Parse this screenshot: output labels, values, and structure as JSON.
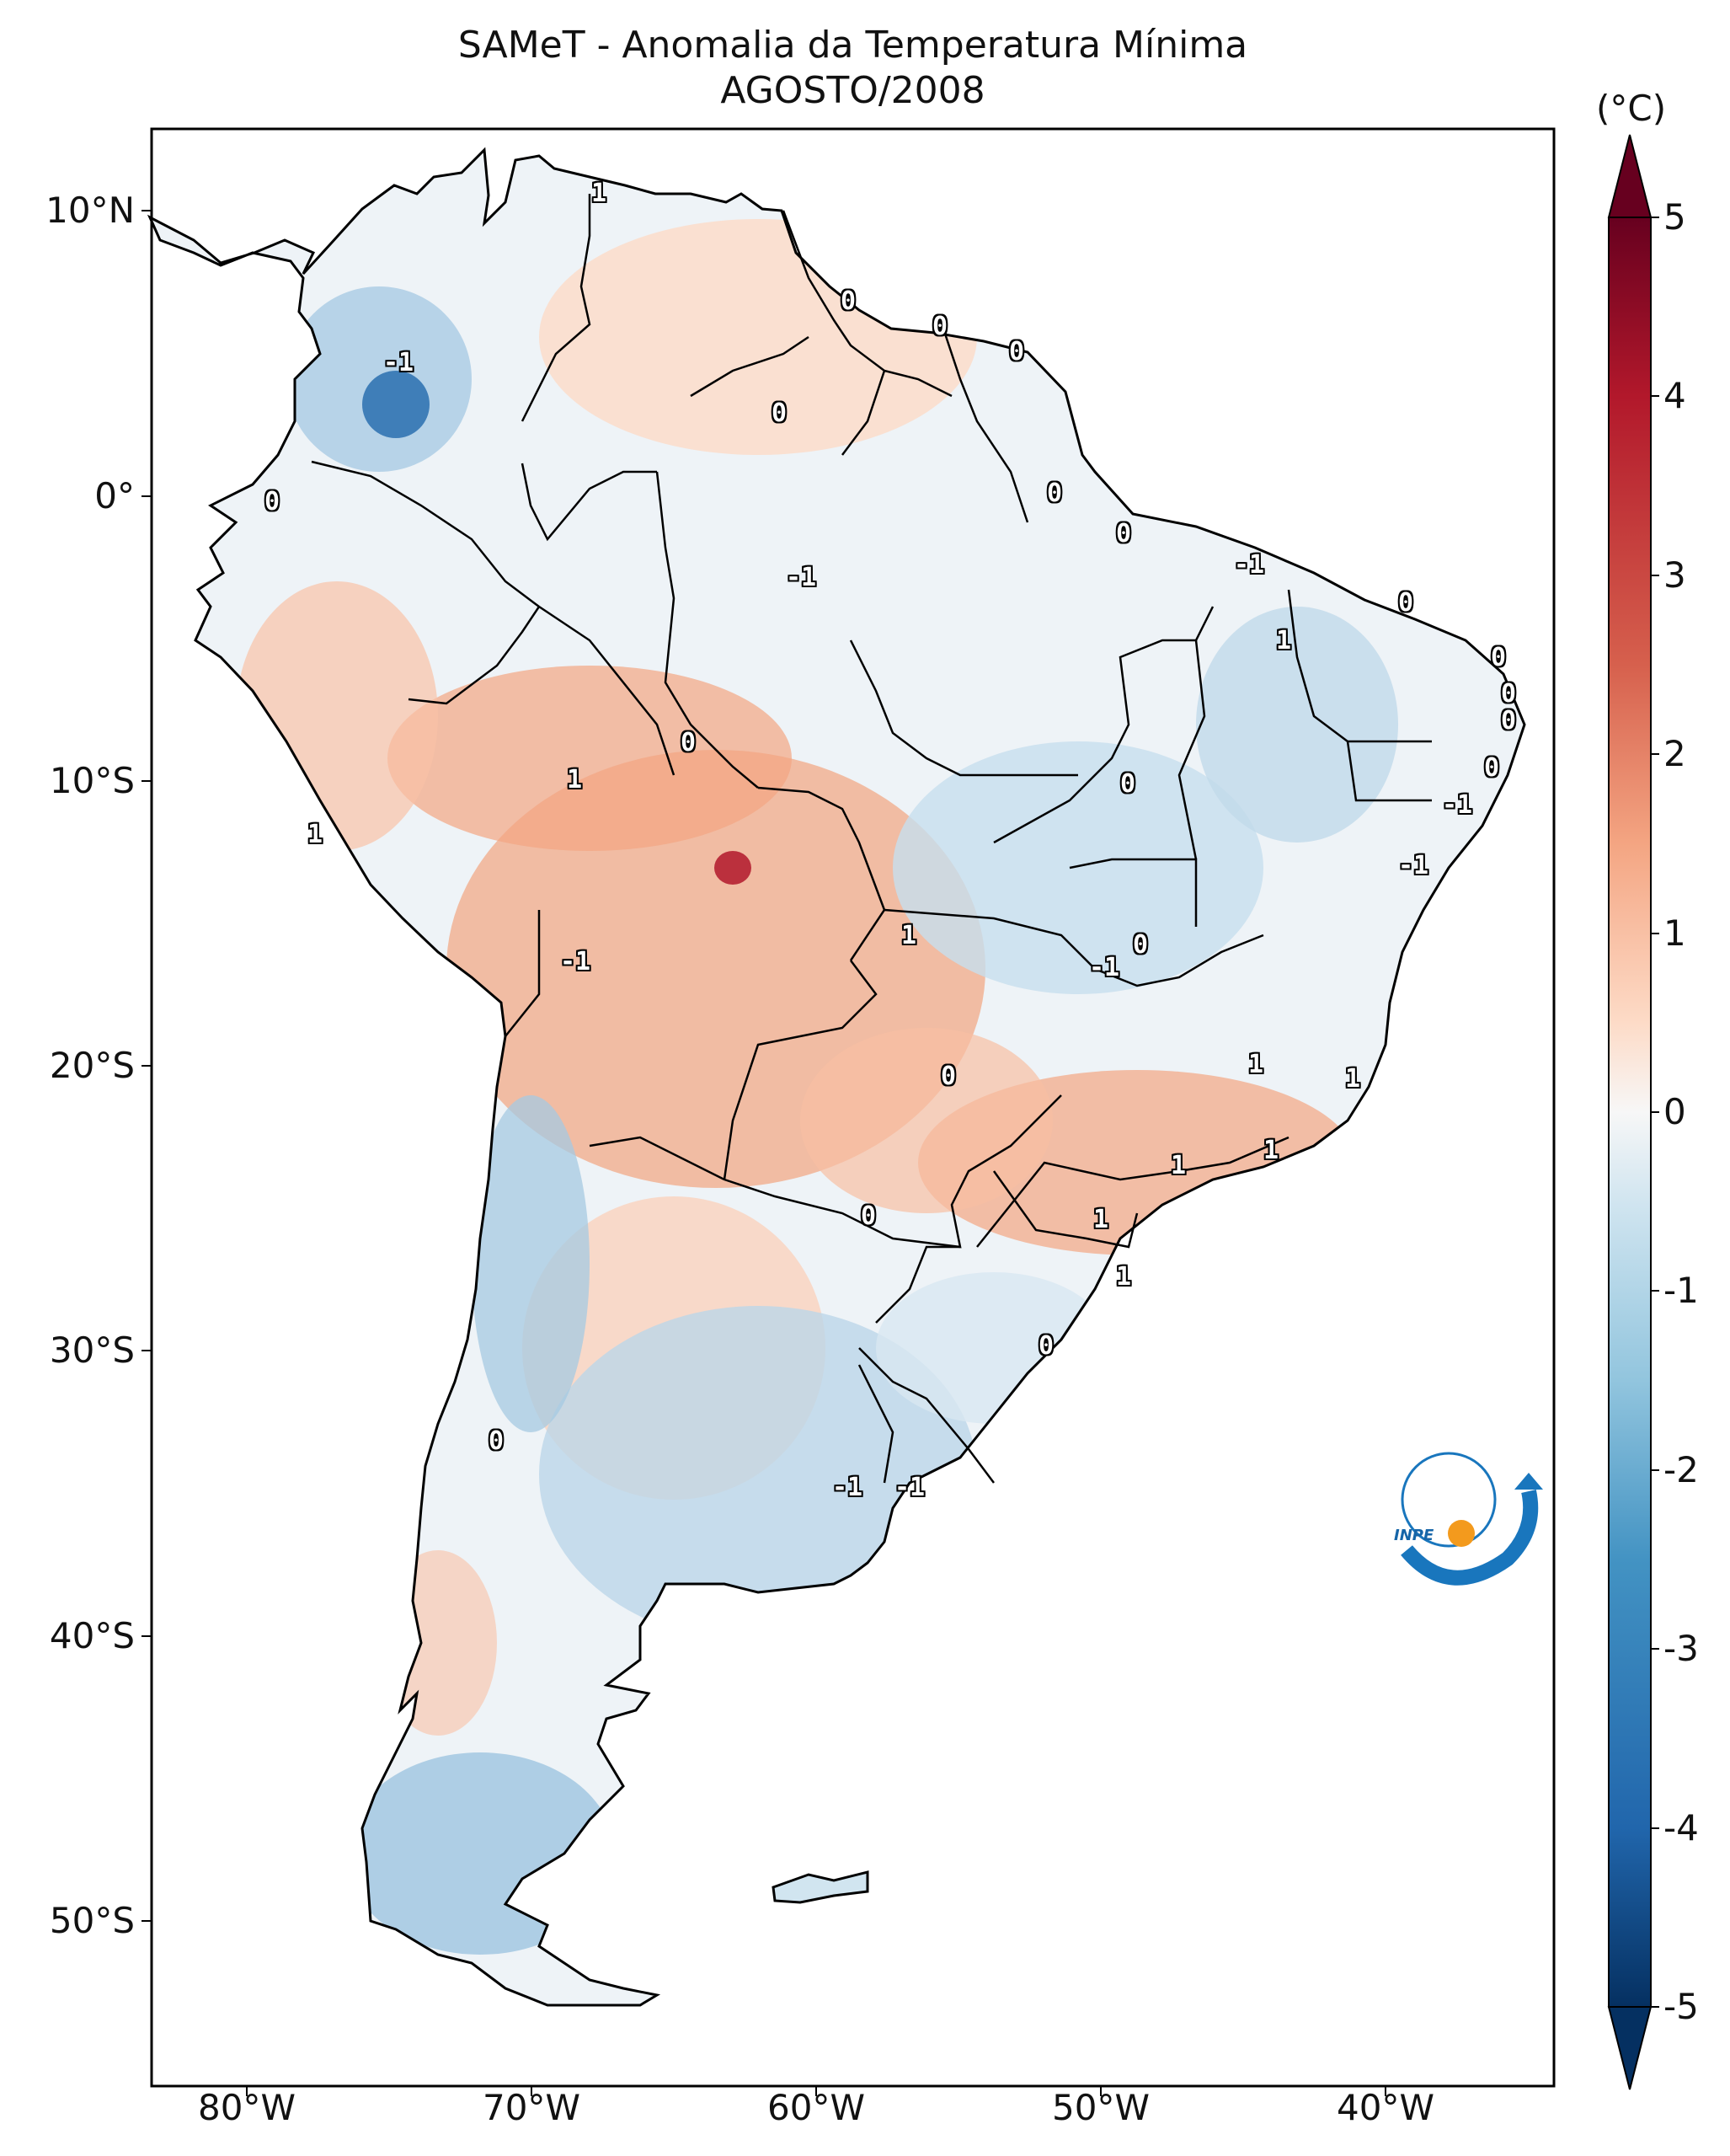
{
  "title": {
    "line1": "SAMeT - Anomalia da Temperatura Mínima",
    "line2": "AGOSTO/2008"
  },
  "axes": {
    "lat_labels": [
      "10°N",
      "0°",
      "10°S",
      "20°S",
      "30°S",
      "40°S",
      "50°S"
    ],
    "lon_labels": [
      "80°W",
      "70°W",
      "60°W",
      "50°W",
      "40°W"
    ]
  },
  "colorbar": {
    "unit": "(°C)",
    "ticks": [
      "5",
      "4",
      "3",
      "2",
      "1",
      "0",
      "-1",
      "-2",
      "-3",
      "-4",
      "-5"
    ],
    "min": -5,
    "max": 5,
    "colors": {
      "cold_extreme": "#053061",
      "cold_strong": "#2166ac",
      "cold_mid": "#4393c3",
      "cold_light": "#92c5de",
      "cold_faint": "#d1e5f0",
      "neutral": "#f7f7f7",
      "warm_faint": "#fddbc7",
      "warm_light": "#f4a582",
      "warm_mid": "#d6604d",
      "warm_strong": "#b2182b",
      "warm_extreme": "#67001f"
    }
  },
  "contour_labels": [
    {
      "text": "1"
    },
    {
      "text": "0"
    },
    {
      "text": "0"
    },
    {
      "text": "0"
    },
    {
      "text": "-1"
    },
    {
      "text": "0"
    },
    {
      "text": "0"
    },
    {
      "text": "0"
    },
    {
      "text": "0"
    },
    {
      "text": "-1"
    },
    {
      "text": "-1"
    },
    {
      "text": "0"
    },
    {
      "text": "1"
    },
    {
      "text": "0"
    },
    {
      "text": "0"
    },
    {
      "text": "0"
    },
    {
      "text": "0"
    },
    {
      "text": "0"
    },
    {
      "text": "1"
    },
    {
      "text": "0"
    },
    {
      "text": "-1"
    },
    {
      "text": "1"
    },
    {
      "text": "-1"
    },
    {
      "text": "1"
    },
    {
      "text": "-1"
    },
    {
      "text": "0"
    },
    {
      "text": "-1"
    },
    {
      "text": "0"
    },
    {
      "text": "1"
    },
    {
      "text": "1"
    },
    {
      "text": "1"
    },
    {
      "text": "1"
    },
    {
      "text": "0"
    },
    {
      "text": "1"
    },
    {
      "text": "1"
    },
    {
      "text": "0"
    },
    {
      "text": "0"
    },
    {
      "text": "-1"
    },
    {
      "text": "-1"
    }
  ],
  "logo": {
    "text": "INPE"
  }
}
